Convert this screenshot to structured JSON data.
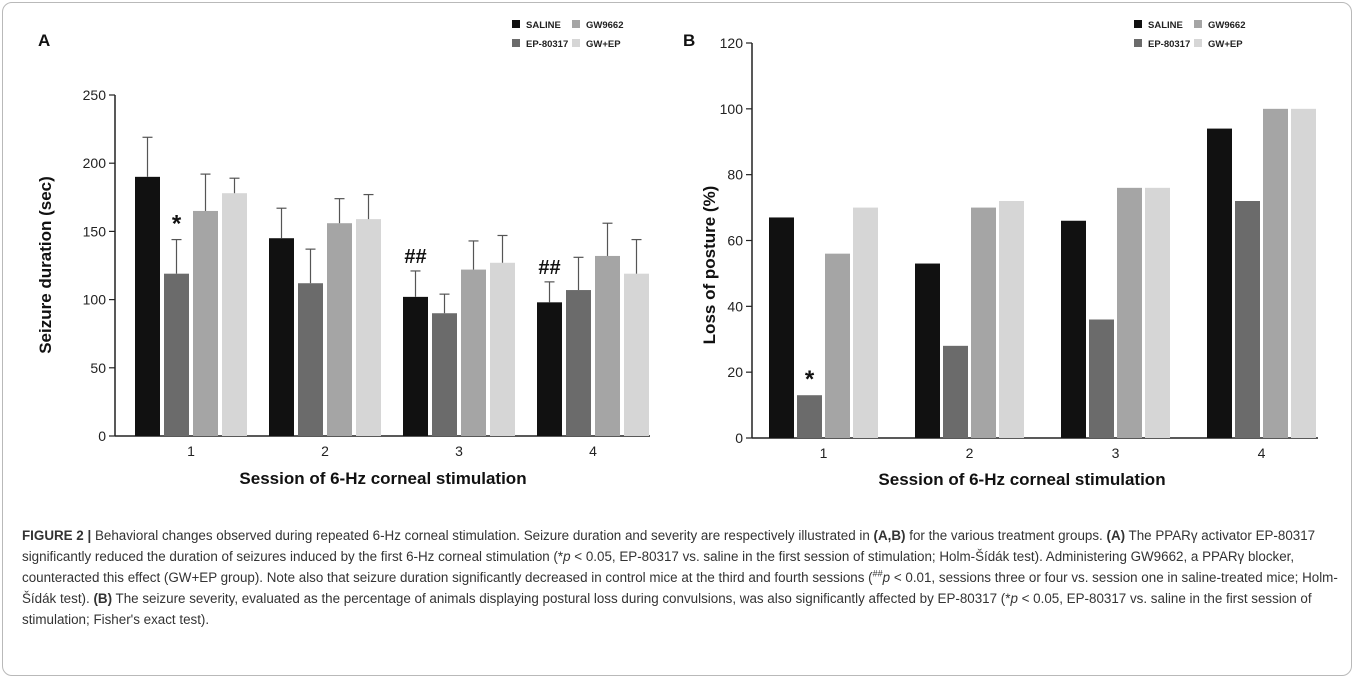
{
  "colors": {
    "SALINE": "#111111",
    "EP-80317": "#6b6b6b",
    "GW9662": "#a5a5a5",
    "GW+EP": "#d6d6d6",
    "axis": "#222222",
    "error_bar": "#555555",
    "caption_label": "#e07a2a"
  },
  "chart_data": [
    {
      "panel": "A",
      "type": "bar",
      "categories": [
        "1",
        "2",
        "3",
        "4"
      ],
      "series": [
        {
          "name": "SALINE",
          "values": [
            190,
            145,
            102,
            98
          ],
          "errors": [
            29,
            22,
            19,
            15
          ]
        },
        {
          "name": "EP-80317",
          "values": [
            119,
            112,
            90,
            107
          ],
          "errors": [
            25,
            25,
            14,
            24
          ]
        },
        {
          "name": "GW9662",
          "values": [
            165,
            156,
            122,
            132
          ],
          "errors": [
            27,
            18,
            21,
            24
          ]
        },
        {
          "name": "GW+EP",
          "values": [
            178,
            159,
            127,
            119
          ],
          "errors": [
            11,
            18,
            20,
            25
          ]
        }
      ],
      "ylabel": "Seizure duration (sec)",
      "xlabel": "Session of 6-Hz corneal stimulation",
      "ylim": [
        0,
        250
      ],
      "yticks": [
        0,
        50,
        100,
        150,
        200,
        250
      ],
      "legend_position": "top-right",
      "annotations": [
        {
          "text": "*",
          "session": "1",
          "series": "EP-80317"
        },
        {
          "text": "##",
          "session": "3",
          "series": "SALINE"
        },
        {
          "text": "##",
          "session": "4",
          "series": "SALINE"
        }
      ]
    },
    {
      "panel": "B",
      "type": "bar",
      "categories": [
        "1",
        "2",
        "3",
        "4"
      ],
      "series": [
        {
          "name": "SALINE",
          "values": [
            67,
            53,
            66,
            94
          ]
        },
        {
          "name": "EP-80317",
          "values": [
            13,
            28,
            36,
            72
          ]
        },
        {
          "name": "GW9662",
          "values": [
            56,
            70,
            76,
            100
          ]
        },
        {
          "name": "GW+EP",
          "values": [
            70,
            72,
            76,
            100
          ]
        }
      ],
      "ylabel": "Loss of posture (%)",
      "xlabel": "Session of 6-Hz corneal stimulation",
      "ylim": [
        0,
        120
      ],
      "yticks": [
        0,
        20,
        40,
        60,
        80,
        100,
        120
      ],
      "legend_position": "top-right",
      "annotations": [
        {
          "text": "*",
          "session": "1",
          "series": "EP-80317"
        }
      ]
    }
  ],
  "caption": {
    "figure_label": "FIGURE 2 |",
    "s1": " Behavioral changes observed during repeated 6-Hz corneal stimulation. Seizure duration and severity are respectively illustrated in ",
    "b1": "(A,B)",
    "s2": " for the various treatment groups. ",
    "b2": "(A)",
    "s3": " The PPARγ activator EP-80317 significantly reduced the duration of seizures induced by the first 6-Hz corneal stimulation (*",
    "p1": "p",
    "s4": " < 0.05, EP-80317 vs. saline in the first session of stimulation; Holm-Šídák test). Administering GW9662, a PPARγ blocker, counteracted this effect (GW+EP group). Note also that seizure duration significantly decreased in control mice at the third and fourth sessions (",
    "sup1": "##",
    "p2": "p",
    "s5": " < 0.01, sessions three or four vs. session one in saline-treated mice; Holm-Šídák test). ",
    "b3": "(B)",
    "s6": " The seizure severity, evaluated as the percentage of animals displaying postural loss during convulsions, was also significantly affected by EP-80317 (*",
    "p3": "p",
    "s7": " < 0.05, EP-80317 vs. saline in the first session of stimulation; Fisher's exact test)."
  }
}
